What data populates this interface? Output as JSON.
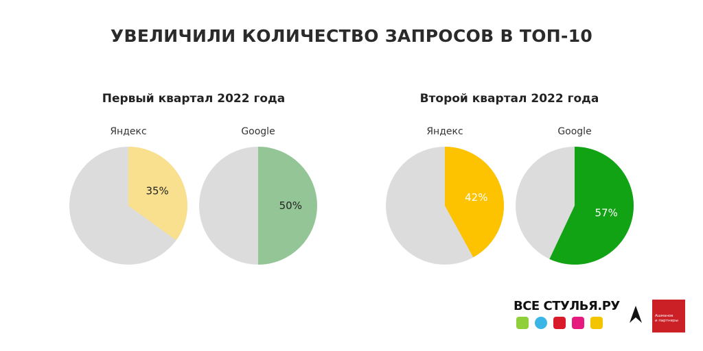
{
  "title": "УВЕЛИЧИЛИ КОЛИЧЕСТВО ЗАПРОСОВ В ТОП-10",
  "chart_data": [
    {
      "type": "pie",
      "title": "Первый квартал 2022 года",
      "pies": [
        {
          "name": "Яндекс",
          "value": 35,
          "label": "35%",
          "color": "#f9e08e",
          "label_color": "#222222"
        },
        {
          "name": "Google",
          "value": 50,
          "label": "50%",
          "color": "#93c596",
          "label_color": "#222222"
        }
      ],
      "rest_color": "#dcdcdc"
    },
    {
      "type": "pie",
      "title": "Второй квартал 2022 года",
      "pies": [
        {
          "name": "Яндекс",
          "value": 42,
          "label": "42%",
          "color": "#fdc300",
          "label_color": "#ffffff"
        },
        {
          "name": "Google",
          "value": 57,
          "label": "57%",
          "color": "#12a315",
          "label_color": "#ffffff"
        }
      ],
      "rest_color": "#dcdcdc"
    }
  ],
  "logos": {
    "vsestulya": "ВСЕ СТУЛЬЯ.РУ",
    "ashmanov": "Ашманов и партнеры",
    "ashmanov_line1": "Ашманов",
    "ashmanov_line2": "и партнеры",
    "chair_colors": [
      "#8fcf3c",
      "#39b6e6",
      "#d91a2a",
      "#e5197e",
      "#f2c500"
    ]
  }
}
